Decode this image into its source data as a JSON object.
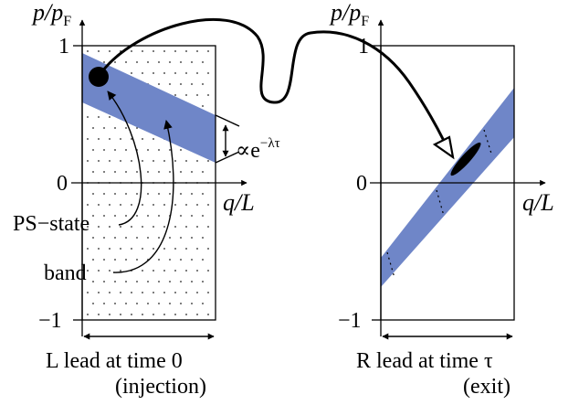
{
  "left_panel": {
    "y_axis_label": "p/p",
    "y_axis_subscript": "F",
    "x_axis_label": "q/L",
    "tick_top": "1",
    "tick_zero": "0",
    "tick_bottom": "−1",
    "decay_label": "∝e",
    "decay_exponent": "−λτ",
    "annotation_ps_state": "PS−state",
    "annotation_band": "band",
    "caption_line1": "L lead at time 0",
    "caption_line2": "(injection)"
  },
  "right_panel": {
    "y_axis_label": "p/p",
    "y_axis_subscript": "F",
    "x_axis_label": "q/L",
    "tick_top": "1",
    "tick_zero": "0",
    "tick_bottom": "−1",
    "caption_line1": "R lead at time τ",
    "caption_line2": "(exit)"
  },
  "colors": {
    "band": "#6f86c8",
    "ink": "#000000"
  }
}
